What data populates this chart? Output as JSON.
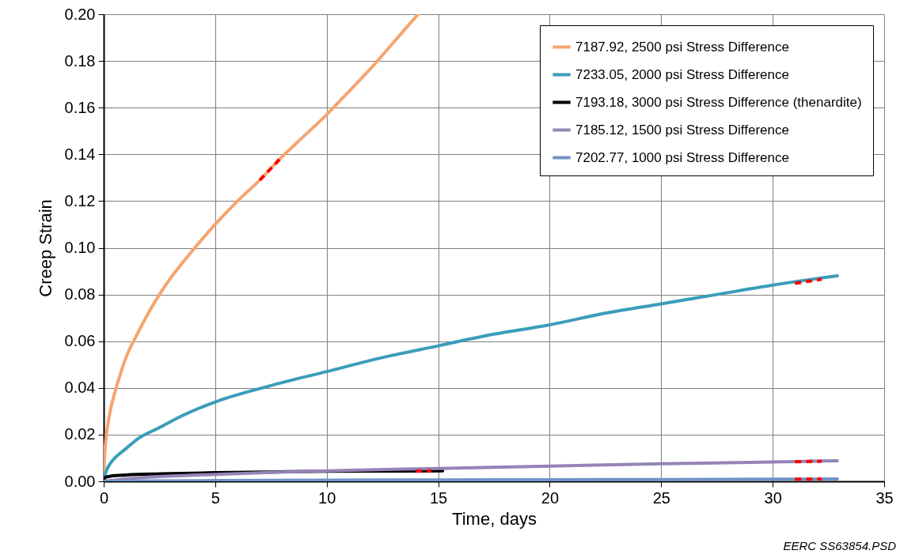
{
  "chart_data": {
    "type": "line",
    "xlabel": "Time, days",
    "ylabel": "Creep Strain",
    "xlim": [
      0,
      35
    ],
    "xticks": [
      0,
      5,
      10,
      15,
      20,
      25,
      30,
      35
    ],
    "ylim": [
      0,
      0.2
    ],
    "yticks": [
      {
        "value": 0,
        "label": "0.00"
      },
      {
        "value": 0.02,
        "label": "0.02"
      },
      {
        "value": 0.04,
        "label": "0.04"
      },
      {
        "value": 0.06,
        "label": "0.06"
      },
      {
        "value": 0.08,
        "label": "0.08"
      },
      {
        "value": 0.1,
        "label": "0.10"
      },
      {
        "value": 0.12,
        "label": "0.12"
      },
      {
        "value": 0.14,
        "label": "0.14"
      },
      {
        "value": 0.16,
        "label": "0.16"
      },
      {
        "value": 0.18,
        "label": "0.18"
      },
      {
        "value": 0.2,
        "label": "0.20"
      }
    ],
    "grid": true,
    "legend": "top right",
    "line_style": "solid",
    "marker": "none",
    "annotations": [
      "EERC SS63854.PSD"
    ],
    "series": [
      {
        "name": "7187.92, 2500 psi Stress Difference",
        "color": "#f5a46f",
        "x": [
          0,
          0.05,
          0.1,
          0.25,
          0.5,
          0.75,
          1,
          1.5,
          2,
          2.5,
          3,
          4,
          5,
          6,
          7,
          8,
          9,
          10,
          11,
          12,
          13,
          14.1
        ],
        "values": [
          0,
          0.012,
          0.018,
          0.028,
          0.038,
          0.046,
          0.053,
          0.063,
          0.072,
          0.08,
          0.087,
          0.099,
          0.11,
          0.12,
          0.129,
          0.139,
          0.148,
          0.157,
          0.167,
          0.177,
          0.188,
          0.2
        ]
      },
      {
        "name": "7233.05, 2000 psi Stress Difference",
        "color": "#3a9dba",
        "x": [
          0,
          0.1,
          0.25,
          0.5,
          1,
          1.5,
          2.5,
          3.5,
          5,
          7.5,
          10,
          12.5,
          15,
          17.5,
          20,
          22.5,
          25,
          27.5,
          30,
          32.9
        ],
        "values": [
          0,
          0.004,
          0.007,
          0.01,
          0.014,
          0.018,
          0.023,
          0.028,
          0.034,
          0.041,
          0.047,
          0.053,
          0.058,
          0.063,
          0.067,
          0.072,
          0.076,
          0.08,
          0.084,
          0.088
        ]
      },
      {
        "name": "7193.18, 3000 psi Stress Difference (thenardite)",
        "color": "#000000",
        "x": [
          0,
          0.1,
          0.3,
          1,
          2.5,
          5,
          7.5,
          10,
          12.5,
          15.2
        ],
        "values": [
          0.001,
          0.0018,
          0.0022,
          0.0027,
          0.0032,
          0.0037,
          0.004,
          0.0043,
          0.0044,
          0.0045
        ]
      },
      {
        "name": "7185.12, 1500 psi Stress Difference",
        "color": "#9584b7",
        "x": [
          0,
          1,
          2.5,
          5,
          7.5,
          10,
          15,
          20,
          25,
          30,
          32.9
        ],
        "values": [
          0,
          0.001,
          0.002,
          0.003,
          0.0038,
          0.0045,
          0.0055,
          0.0065,
          0.0075,
          0.0083,
          0.0088
        ]
      },
      {
        "name": "7202.77, 1000 psi Stress Difference",
        "color": "#6f93c8",
        "x": [
          0,
          5,
          10,
          15,
          20,
          25,
          30,
          32.9
        ],
        "values": [
          0,
          0.0003,
          0.0005,
          0.0006,
          0.0007,
          0.0008,
          0.0009,
          0.001
        ]
      },
      {
        "color": "#ff0000",
        "line_style": "dashed",
        "x": [
          7.0,
          8.0
        ],
        "values": [
          0.129,
          0.139
        ]
      },
      {
        "color": "#ff0000",
        "line_style": "dashed",
        "x": [
          31,
          32.2
        ],
        "values": [
          0.0848,
          0.0865
        ]
      },
      {
        "color": "#ff0000",
        "line_style": "dashed",
        "x": [
          14,
          14.7
        ],
        "values": [
          0.0044,
          0.0045
        ]
      },
      {
        "color": "#ff0000",
        "line_style": "dashed",
        "x": [
          31,
          32.2
        ],
        "values": [
          0.0084,
          0.0086
        ]
      },
      {
        "color": "#ff0000",
        "line_style": "dashed",
        "x": [
          31,
          32.2
        ],
        "values": [
          0.0009,
          0.001
        ]
      }
    ]
  }
}
